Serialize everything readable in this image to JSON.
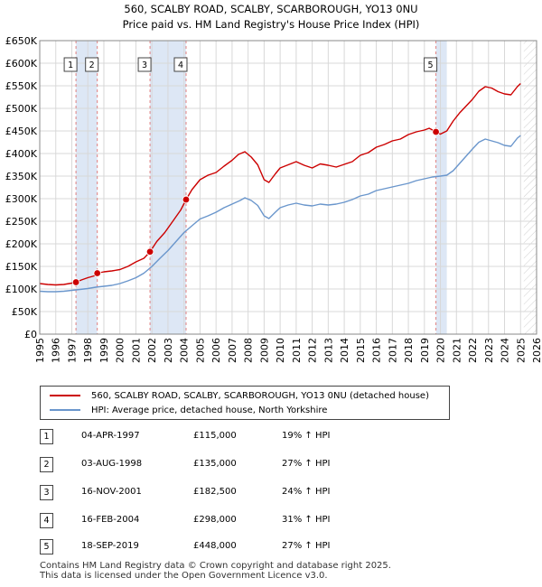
{
  "title_line1": "560, SCALBY ROAD, SCALBY, SCARBOROUGH, YO13 0NU",
  "title_line2": "Price paid vs. HM Land Registry's House Price Index (HPI)",
  "colors": {
    "property": "#cc0000",
    "hpi": "#6a96cc",
    "shade": "#dde7f5",
    "grid": "#d8d8d8",
    "vline": "#e08080"
  },
  "chart_data": {
    "type": "line",
    "x_range": [
      1995,
      2026
    ],
    "y_range": [
      0,
      650000
    ],
    "y_ticks": [
      0,
      50000,
      100000,
      150000,
      200000,
      250000,
      300000,
      350000,
      400000,
      450000,
      500000,
      550000,
      600000,
      650000
    ],
    "y_tick_labels": [
      "£0",
      "£50K",
      "£100K",
      "£150K",
      "£200K",
      "£250K",
      "£300K",
      "£350K",
      "£400K",
      "£450K",
      "£500K",
      "£550K",
      "£600K",
      "£650K"
    ],
    "x_ticks": [
      1995,
      1996,
      1997,
      1998,
      1999,
      2000,
      2001,
      2002,
      2003,
      2004,
      2005,
      2006,
      2007,
      2008,
      2009,
      2010,
      2011,
      2012,
      2013,
      2014,
      2015,
      2016,
      2017,
      2018,
      2019,
      2020,
      2021,
      2022,
      2023,
      2024,
      2025,
      2026
    ],
    "x_tick_labels": [
      "1995",
      "1996",
      "1997",
      "1998",
      "1999",
      "2000",
      "2001",
      "2002",
      "2003",
      "2004",
      "2005",
      "2006",
      "2007",
      "2008",
      "2009",
      "2010",
      "2011",
      "2012",
      "2013",
      "2014",
      "2015",
      "2016",
      "2017",
      "2018",
      "2019",
      "2020",
      "2021",
      "2022",
      "2023",
      "2024",
      "2025",
      "2026"
    ],
    "shaded_ranges": [
      [
        1997.26,
        1998.59
      ],
      [
        2001.88,
        2004.13
      ],
      [
        2019.72,
        2020.4
      ]
    ],
    "future_hatch_from": 2025.2,
    "series": [
      {
        "name": "560, SCALBY ROAD, SCALBY, SCARBOROUGH, YO13 0NU (detached house)",
        "x": [
          1995.0,
          1995.5,
          1996.0,
          1996.5,
          1997.0,
          1997.26,
          1997.6,
          1998.0,
          1998.4,
          1998.59,
          1999.0,
          1999.5,
          2000.0,
          2000.5,
          2001.0,
          2001.5,
          2001.88,
          2002.3,
          2002.8,
          2003.3,
          2003.8,
          2004.13,
          2004.5,
          2005.0,
          2005.5,
          2006.0,
          2006.5,
          2007.0,
          2007.4,
          2007.8,
          2008.2,
          2008.6,
          2009.0,
          2009.3,
          2009.7,
          2010.0,
          2010.5,
          2011.0,
          2011.5,
          2012.0,
          2012.5,
          2013.0,
          2013.5,
          2014.0,
          2014.5,
          2015.0,
          2015.5,
          2016.0,
          2016.5,
          2017.0,
          2017.5,
          2018.0,
          2018.5,
          2019.0,
          2019.3,
          2019.72,
          2020.0,
          2020.4,
          2020.8,
          2021.2,
          2021.6,
          2022.0,
          2022.4,
          2022.8,
          2023.2,
          2023.6,
          2024.0,
          2024.4,
          2024.8,
          2025.0
        ],
        "values": [
          112000,
          110000,
          109000,
          110000,
          113000,
          115000,
          120000,
          125000,
          129000,
          135000,
          138000,
          140000,
          143000,
          150000,
          160000,
          168000,
          182500,
          205000,
          225000,
          250000,
          275000,
          298000,
          320000,
          342000,
          352000,
          358000,
          372000,
          385000,
          398000,
          404000,
          392000,
          375000,
          342000,
          336000,
          355000,
          368000,
          375000,
          382000,
          374000,
          368000,
          377000,
          374000,
          370000,
          376000,
          382000,
          396000,
          402000,
          414000,
          420000,
          428000,
          432000,
          442000,
          448000,
          452000,
          456000,
          448000,
          443000,
          450000,
          472000,
          490000,
          505000,
          520000,
          538000,
          548000,
          545000,
          537000,
          532000,
          530000,
          548000,
          555000
        ]
      },
      {
        "name": "HPI: Average price, detached house, North Yorkshire",
        "x": [
          1995.0,
          1995.5,
          1996.0,
          1996.5,
          1997.0,
          1997.5,
          1998.0,
          1998.5,
          1999.0,
          1999.5,
          2000.0,
          2000.5,
          2001.0,
          2001.5,
          2002.0,
          2002.5,
          2003.0,
          2003.5,
          2004.0,
          2004.5,
          2005.0,
          2005.5,
          2006.0,
          2006.5,
          2007.0,
          2007.5,
          2007.8,
          2008.2,
          2008.6,
          2009.0,
          2009.3,
          2009.7,
          2010.0,
          2010.5,
          2011.0,
          2011.5,
          2012.0,
          2012.5,
          2013.0,
          2013.5,
          2014.0,
          2014.5,
          2015.0,
          2015.5,
          2016.0,
          2016.5,
          2017.0,
          2017.5,
          2018.0,
          2018.5,
          2019.0,
          2019.5,
          2020.0,
          2020.4,
          2020.8,
          2021.2,
          2021.6,
          2022.0,
          2022.4,
          2022.8,
          2023.2,
          2023.6,
          2024.0,
          2024.4,
          2024.8,
          2025.0
        ],
        "values": [
          95000,
          94000,
          94000,
          95000,
          97000,
          99000,
          101000,
          104000,
          106000,
          108000,
          112000,
          118000,
          125000,
          135000,
          150000,
          168000,
          185000,
          205000,
          225000,
          240000,
          255000,
          262000,
          270000,
          280000,
          288000,
          296000,
          302000,
          296000,
          285000,
          262000,
          256000,
          270000,
          280000,
          286000,
          290000,
          286000,
          284000,
          288000,
          286000,
          288000,
          292000,
          298000,
          306000,
          310000,
          318000,
          322000,
          326000,
          330000,
          334000,
          340000,
          344000,
          348000,
          350000,
          352000,
          362000,
          378000,
          394000,
          410000,
          425000,
          432000,
          428000,
          424000,
          418000,
          416000,
          434000,
          440000
        ]
      }
    ],
    "sales": [
      {
        "label": "1",
        "x": 1997.26,
        "value": 115000
      },
      {
        "label": "2",
        "x": 1998.59,
        "value": 135000
      },
      {
        "label": "3",
        "x": 2001.88,
        "value": 182500
      },
      {
        "label": "4",
        "x": 2004.13,
        "value": 298000
      },
      {
        "label": "5",
        "x": 2019.72,
        "value": 448000
      }
    ]
  },
  "legend": {
    "property_label": "560, SCALBY ROAD, SCALBY, SCARBOROUGH, YO13 0NU (detached house)",
    "hpi_label": "HPI: Average price, detached house, North Yorkshire"
  },
  "transactions": [
    {
      "num": "1",
      "date": "04-APR-1997",
      "price": "£115,000",
      "hpi": "19% ↑ HPI"
    },
    {
      "num": "2",
      "date": "03-AUG-1998",
      "price": "£135,000",
      "hpi": "27% ↑ HPI"
    },
    {
      "num": "3",
      "date": "16-NOV-2001",
      "price": "£182,500",
      "hpi": "24% ↑ HPI"
    },
    {
      "num": "4",
      "date": "16-FEB-2004",
      "price": "£298,000",
      "hpi": "31% ↑ HPI"
    },
    {
      "num": "5",
      "date": "18-SEP-2019",
      "price": "£448,000",
      "hpi": "27% ↑ HPI"
    }
  ],
  "footer": {
    "line1": "Contains HM Land Registry data © Crown copyright and database right 2025.",
    "line2": "This data is licensed under the Open Government Licence v3.0."
  }
}
